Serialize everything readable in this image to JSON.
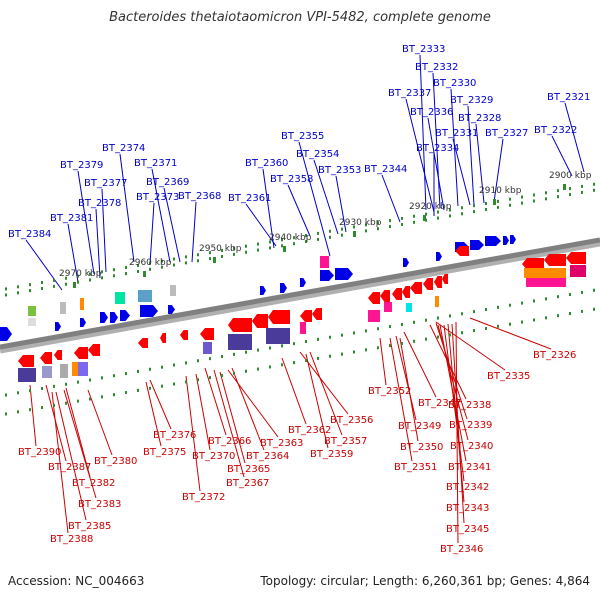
{
  "title": "Bacteroides thetaiotaomicron VPI-5482, complete genome",
  "footer": {
    "accession": "Accession: NC_004663",
    "summary": "Topology: circular; Length: 6,260,361 bp; Genes: 4,864"
  },
  "colors": {
    "forward_label": "#0000cc",
    "reverse_label": "#cc0000",
    "backbone": "#808080",
    "tick": "#2e8b2e"
  },
  "kbp_labels": [
    "2900 kbp",
    "2910 kbp",
    "2920 kbp",
    "2930 kbp",
    "2940 kbp",
    "2950 kbp",
    "2960 kbp",
    "2970 kbp"
  ],
  "forward_genes": [
    "BT_2333",
    "BT_2332",
    "BT_2330",
    "BT_2337",
    "BT_2329",
    "BT_2321",
    "BT_2336",
    "BT_2328",
    "BT_2331",
    "BT_2327",
    "BT_2322",
    "BT_2355",
    "BT_2334",
    "BT_2374",
    "BT_2354",
    "BT_2379",
    "BT_2371",
    "BT_2360",
    "BT_2358",
    "BT_2353",
    "BT_2344",
    "BT_2377",
    "BT_2369",
    "BT_2378",
    "BT_2373",
    "BT_2368",
    "BT_2361",
    "BT_2381",
    "BT_2384"
  ],
  "reverse_genes": [
    "BT_2326",
    "BT_2335",
    "BT_2352",
    "BT_2347",
    "BT_2338",
    "BT_2349",
    "BT_2339",
    "BT_2376",
    "BT_2362",
    "BT_2356",
    "BT_2366",
    "BT_2363",
    "BT_2357",
    "BT_2350",
    "BT_2340",
    "BT_2390",
    "BT_2375",
    "BT_2370",
    "BT_2364",
    "BT_2359",
    "BT_2380",
    "BT_2365",
    "BT_2351",
    "BT_2341",
    "BT_2387",
    "BT_2367",
    "BT_2382",
    "BT_2372",
    "BT_2342",
    "BT_2383",
    "BT_2343",
    "BT_2385",
    "BT_2345",
    "BT_2388",
    "BT_2346"
  ]
}
